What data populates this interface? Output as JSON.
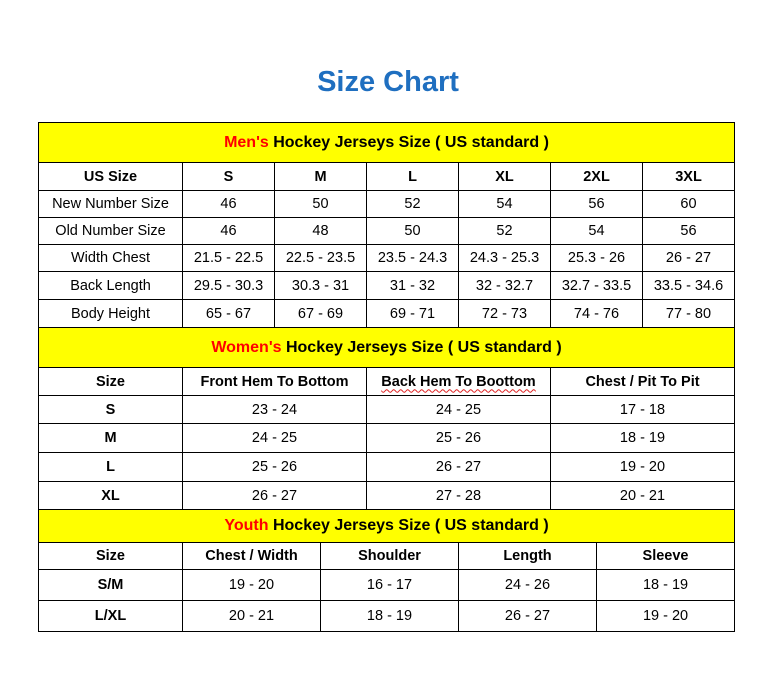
{
  "title": "Size Chart",
  "colors": {
    "title": "#1f6fc0",
    "section_bg": "#ffff00",
    "section_accent": "#ff0000"
  },
  "men": {
    "heading_accent": "Men's",
    "heading_rest": " Hockey Jerseys Size ( US standard )",
    "columns": [
      "US Size",
      "S",
      "M",
      "L",
      "XL",
      "2XL",
      "3XL"
    ],
    "rows": [
      [
        "New Number Size",
        "46",
        "50",
        "52",
        "54",
        "56",
        "60"
      ],
      [
        "Old Number Size",
        "46",
        "48",
        "50",
        "52",
        "54",
        "56"
      ],
      [
        "Width Chest",
        "21.5 - 22.5",
        "22.5 - 23.5",
        "23.5 - 24.3",
        "24.3 - 25.3",
        "25.3 - 26",
        "26 - 27"
      ],
      [
        "Back Length",
        "29.5 - 30.3",
        "30.3 - 31",
        "31 - 32",
        "32 - 32.7",
        "32.7 - 33.5",
        "33.5 - 34.6"
      ],
      [
        "Body Height",
        "65 - 67",
        "67 - 69",
        "69 - 71",
        "72 - 73",
        "74 - 76",
        "77 - 80"
      ]
    ]
  },
  "women": {
    "heading_accent": "Women's",
    "heading_rest": " Hockey Jerseys Size ( US standard )",
    "columns": [
      "Size",
      "Front Hem To Bottom",
      "Back Hem To Boottom",
      "Chest / Pit To Pit"
    ],
    "rows": [
      [
        "S",
        "23 - 24",
        "24 - 25",
        "17 - 18"
      ],
      [
        "M",
        "24 - 25",
        "25 - 26",
        "18 - 19"
      ],
      [
        "L",
        "25 - 26",
        "26 - 27",
        "19 - 20"
      ],
      [
        "XL",
        "26 - 27",
        "27 - 28",
        "20 - 21"
      ]
    ]
  },
  "youth": {
    "heading_accent": "Youth",
    "heading_rest": " Hockey Jerseys Size ( US standard )",
    "columns": [
      "Size",
      "Chest / Width",
      "Shoulder",
      "Length",
      "Sleeve"
    ],
    "rows": [
      [
        "S/M",
        "19 - 20",
        "16 - 17",
        "24 - 26",
        "18 - 19"
      ],
      [
        "L/XL",
        "20 - 21",
        "18 - 19",
        "26 - 27",
        "19 - 20"
      ]
    ]
  }
}
